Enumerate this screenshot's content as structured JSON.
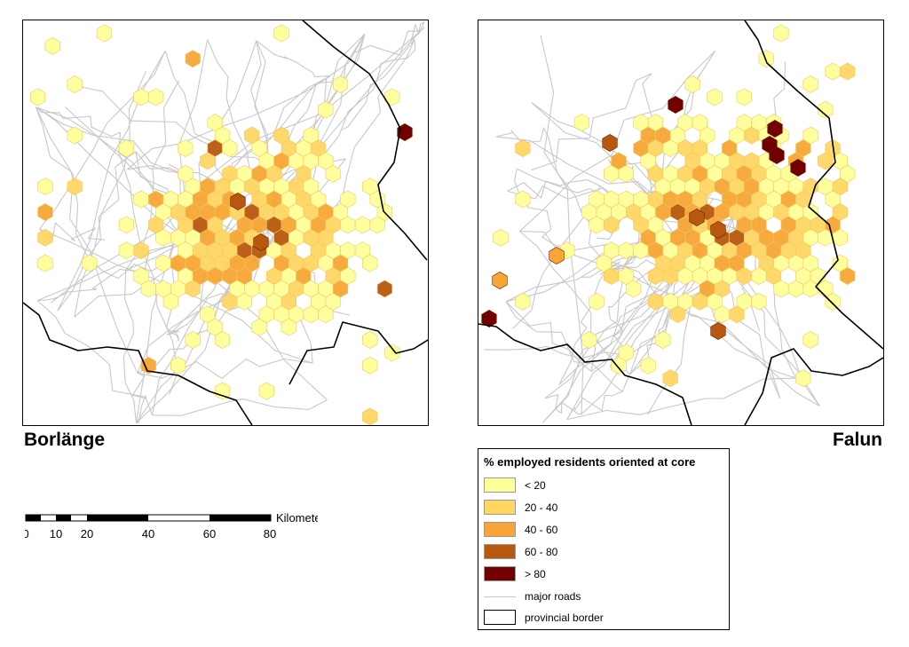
{
  "maps": [
    {
      "id": "left",
      "label": "Borlänge"
    },
    {
      "id": "right",
      "label": "Falun"
    }
  ],
  "legend": {
    "title": "% employed residents oriented at core",
    "classes": [
      {
        "label": "< 20",
        "color": "#ffff99"
      },
      {
        "label": "20 - 40",
        "color": "#fed662"
      },
      {
        "label": "40 - 60",
        "color": "#f7a534"
      },
      {
        "label": "60 - 80",
        "color": "#b8580e"
      },
      {
        "label": "> 80",
        "color": "#720000"
      }
    ],
    "roads_label": "major roads",
    "roads_color": "#c8c8c8",
    "border_label": "provincial border",
    "border_color": "#000000"
  },
  "scalebar": {
    "unit": "Kilometers",
    "ticks": [
      "0",
      "10",
      "20",
      "40",
      "60",
      "80"
    ]
  }
}
